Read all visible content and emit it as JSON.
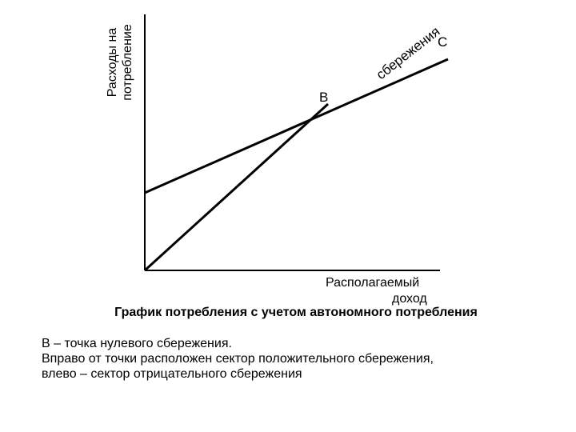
{
  "diagram": {
    "y_axis_label_line1": "Расходы на",
    "y_axis_label_line2": "потребление",
    "x_axis_label_line1": "Располагаемый",
    "x_axis_label_line2": "доход",
    "point_b_label": "В",
    "point_c_label": "С",
    "curve_label": "сбережения",
    "line_color": "#000000"
  },
  "caption": "График потребления с учетом автономного потребления",
  "notes": [
    "В – точка нулевого сбережения.",
    "Вправо от точки расположен сектор положительного сбережения,",
    "влево – сектор отрицательного сбережения"
  ]
}
